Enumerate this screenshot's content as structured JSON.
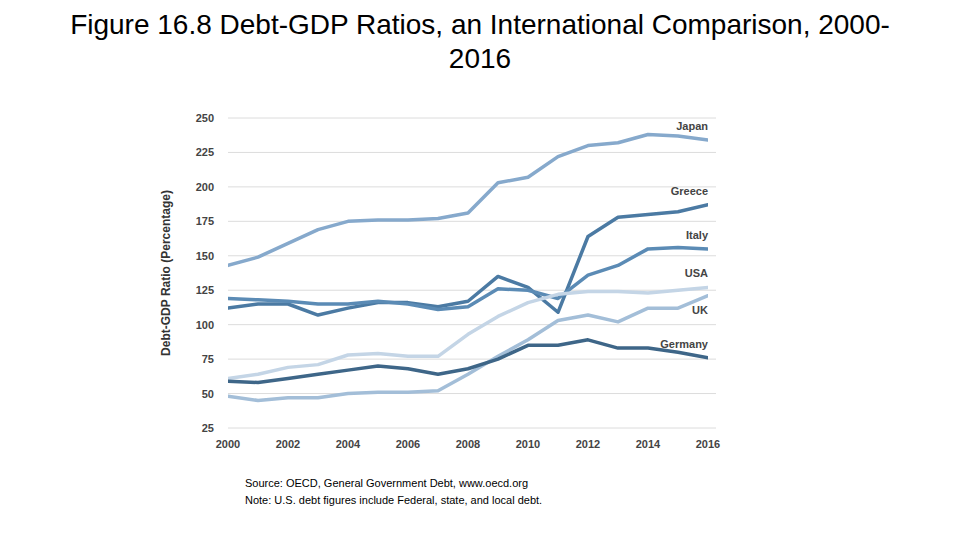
{
  "chart_data": {
    "type": "line",
    "title": "Figure 16.8 Debt-GDP Ratios, an International Comparison, 2000-2016",
    "y_label": "Debt-GDP Ratio (Percentage)",
    "annotations": [
      "Source: OECD, General Government Debt, www.oecd.org",
      "Note: U.S. debt figures include Federal, state, and local debt."
    ],
    "x": [
      2000,
      2001,
      2002,
      2003,
      2004,
      2005,
      2006,
      2007,
      2008,
      2009,
      2010,
      2011,
      2012,
      2013,
      2014,
      2015,
      2016
    ],
    "xlim": [
      2000,
      2016
    ],
    "xticks": [
      2000,
      2002,
      2004,
      2006,
      2008,
      2010,
      2012,
      2014,
      2016
    ],
    "ylim": [
      25,
      250
    ],
    "yticks": [
      25,
      50,
      75,
      100,
      125,
      150,
      175,
      200,
      225,
      250
    ],
    "grid": true,
    "series": [
      {
        "name": "Japan",
        "color": "#86a9cc",
        "values": [
          143,
          149,
          159,
          169,
          175,
          176,
          176,
          177,
          181,
          203,
          207,
          222,
          230,
          232,
          238,
          237,
          234
        ]
      },
      {
        "name": "Greece",
        "color": "#4b7aa3",
        "values": [
          112,
          115,
          115,
          107,
          112,
          116,
          116,
          113,
          117,
          135,
          127,
          109,
          164,
          178,
          180,
          182,
          187
        ]
      },
      {
        "name": "Italy",
        "color": "#5b8bb5",
        "values": [
          119,
          118,
          117,
          115,
          115,
          117,
          115,
          111,
          113,
          126,
          125,
          119,
          136,
          143,
          155,
          156,
          155
        ]
      },
      {
        "name": "USA",
        "color": "#c4d5e6",
        "values": [
          61,
          64,
          69,
          71,
          78,
          79,
          77,
          77,
          93,
          106,
          116,
          122,
          124,
          124,
          123,
          125,
          127
        ]
      },
      {
        "name": "UK",
        "color": "#a3bed8",
        "values": [
          48,
          45,
          47,
          47,
          50,
          51,
          51,
          52,
          64,
          77,
          89,
          103,
          107,
          102,
          112,
          112,
          121
        ]
      },
      {
        "name": "Germany",
        "color": "#3e6688",
        "values": [
          59,
          58,
          61,
          64,
          67,
          70,
          68,
          64,
          68,
          75,
          85,
          85,
          89,
          83,
          83,
          80,
          76
        ]
      }
    ]
  }
}
